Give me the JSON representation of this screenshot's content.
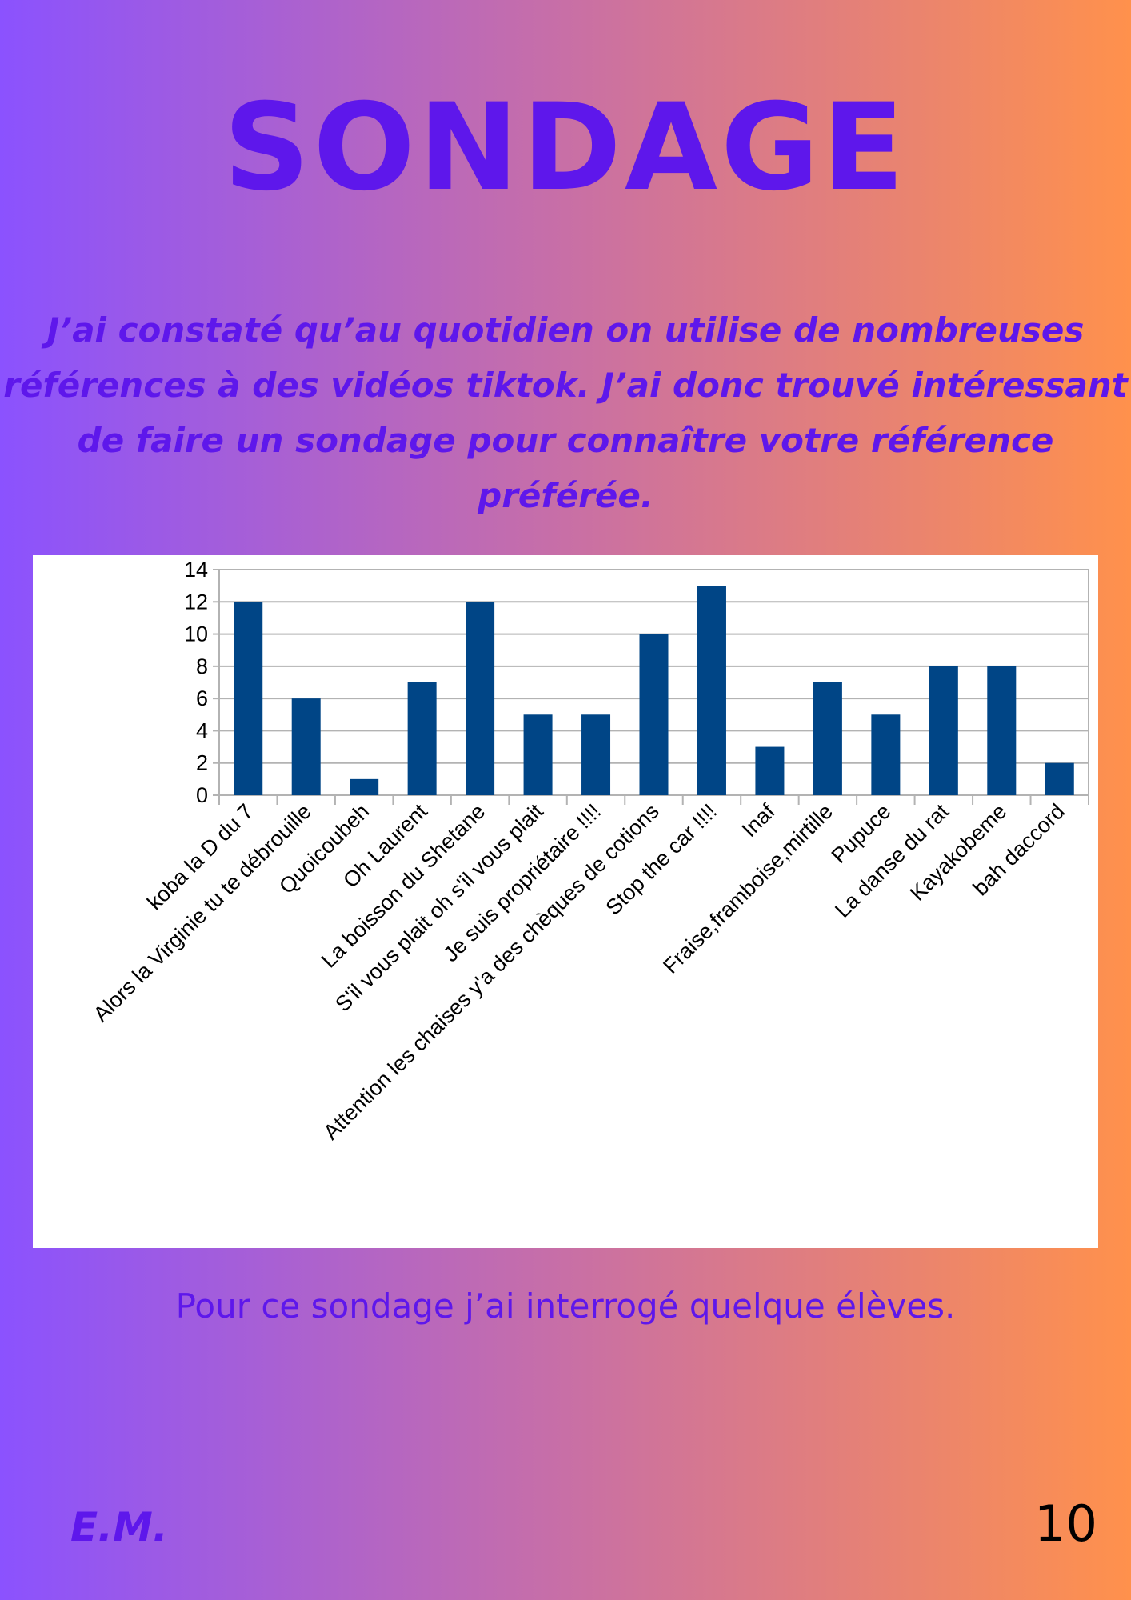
{
  "page": {
    "title": "SONDAGE",
    "intro_lines": [
      "J’ai constaté qu’au quotidien on utilise de nombreuses",
      "références à des vidéos tiktok. J’ai donc trouvé intéressant",
      "de faire un sondage pour connaître votre référence",
      "préférée."
    ],
    "caption": "Pour ce sondage j’ai interrogé quelque élèves.",
    "author": "E.M.",
    "page_number": "10"
  },
  "colors": {
    "title": "#5e17eb",
    "bar": "#004586",
    "background_left": "#8b52fe",
    "background_right": "#ff914c"
  },
  "chart_data": {
    "type": "bar",
    "categories": [
      "koba la D du 7",
      "Alors la Virginie tu te débrouille",
      "Quoicoubeh",
      "Oh Laurent",
      "La boisson du Shetane",
      "S'il vous plait oh s'il vous plait",
      "Je suis propriétaire !!!!",
      "Attention les chaises y'a des chèques de cotions",
      "Stop the car !!!!",
      "Inaf",
      "Fraise,framboise,mirtille",
      "Pupuce",
      "La danse du rat",
      "Kayakobeme",
      "bah daccord"
    ],
    "values": [
      12,
      6,
      1,
      7,
      12,
      5,
      5,
      10,
      13,
      3,
      7,
      5,
      8,
      8,
      2
    ],
    "yticks": [
      0,
      2,
      4,
      6,
      8,
      10,
      12,
      14
    ],
    "ylim": [
      0,
      14
    ],
    "grid": true,
    "legend": "none"
  }
}
